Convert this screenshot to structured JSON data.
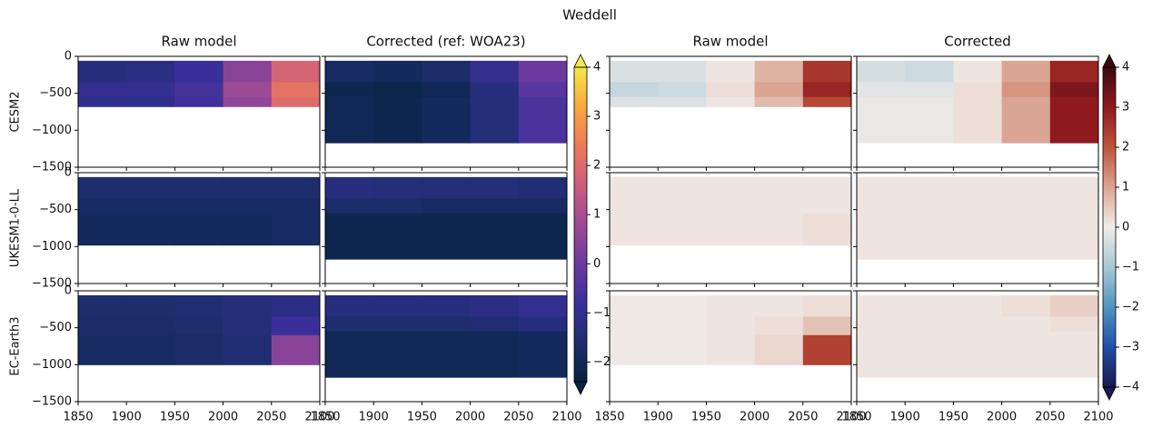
{
  "chart_data": {
    "type": "heatmap",
    "title": "Weddell",
    "columns": [
      "Raw model",
      "Corrected (ref: WOA23)",
      "Raw model",
      "Corrected"
    ],
    "xlim": [
      1850,
      2100
    ],
    "xticks": [
      1850,
      1900,
      1950,
      2000,
      2050,
      2100
    ],
    "ylim": [
      -1500,
      0
    ],
    "yticks": [
      0,
      {
        "value": -500,
        "label": "−500"
      },
      {
        "value": -1000,
        "label": "−1000"
      },
      {
        "value": -1500,
        "label": "−1500"
      }
    ],
    "x_edges": [
      1850,
      1900,
      1950,
      2000,
      2050,
      2100
    ],
    "colorbars": [
      {
        "clim": [
          -2.4,
          4.0
        ],
        "extend": "both",
        "ticks": [
          {
            "value": -2,
            "label": "−2"
          },
          {
            "value": -1,
            "label": "−1"
          },
          0,
          1,
          2,
          3,
          4
        ],
        "colors": [
          "#04233e",
          "#1e2d6e",
          "#3a2f9a",
          "#6a3a9e",
          "#9c4a94",
          "#cd5c7c",
          "#ec7b5b",
          "#f9a83e",
          "#f5e84b"
        ]
      },
      {
        "clim": [
          -4,
          4
        ],
        "extend": "both",
        "ticks": [
          {
            "value": -4,
            "label": "−4"
          },
          {
            "value": -3,
            "label": "−3"
          },
          {
            "value": -2,
            "label": "−2"
          },
          {
            "value": -1,
            "label": "−1"
          },
          0,
          1,
          2,
          3,
          4
        ],
        "colors": [
          "#1a1a4e",
          "#1f4fa8",
          "#4f95c0",
          "#a8c8d4",
          "#f1ece9",
          "#dba593",
          "#c0533b",
          "#8f1a1e",
          "#3c0911"
        ]
      }
    ],
    "rows": [
      {
        "name": "CESM2",
        "panels": [
          {
            "depth_edges": [
              -60,
              -350,
              -550,
              -680
            ],
            "values": [
              [
                -1.3,
                -1.2,
                -0.8,
                0.5,
                1.8
              ],
              [
                -1.0,
                -1.0,
                -0.6,
                0.8,
                2.2
              ],
              [
                -1.1,
                -1.1,
                -0.7,
                0.6,
                2.0
              ]
            ]
          },
          {
            "depth_edges": [
              -60,
              -350,
              -550,
              -1170
            ],
            "values": [
              [
                -1.8,
                -1.9,
                -1.7,
                -1.0,
                0.0
              ],
              [
                -2.1,
                -2.2,
                -2.0,
                -1.3,
                -0.3
              ],
              [
                -2.0,
                -2.1,
                -1.9,
                -1.4,
                -0.5
              ]
            ]
          },
          {
            "depth_edges": [
              -60,
              -350,
              -550,
              -680
            ],
            "values": [
              [
                -0.3,
                -0.3,
                0.1,
                0.8,
                2.5
              ],
              [
                -0.6,
                -0.5,
                0.2,
                1.0,
                2.8
              ],
              [
                -0.3,
                -0.3,
                0.1,
                0.7,
                2.2
              ]
            ]
          },
          {
            "depth_edges": [
              -60,
              -350,
              -550,
              -1170
            ],
            "values": [
              [
                -0.4,
                -0.5,
                0.1,
                1.0,
                2.8
              ],
              [
                -0.2,
                -0.2,
                0.2,
                1.2,
                3.2
              ],
              [
                -0.1,
                -0.1,
                0.2,
                1.0,
                3.0
              ]
            ]
          }
        ]
      },
      {
        "name": "UKESM1-0-LL",
        "panels": [
          {
            "depth_edges": [
              -60,
              -350,
              -550,
              -980
            ],
            "values": [
              [
                -1.6,
                -1.6,
                -1.6,
                -1.6,
                -1.6
              ],
              [
                -1.8,
                -1.8,
                -1.8,
                -1.8,
                -1.8
              ],
              [
                -1.9,
                -1.9,
                -1.9,
                -1.9,
                -1.8
              ]
            ]
          },
          {
            "depth_edges": [
              -60,
              -350,
              -550,
              -1170
            ],
            "values": [
              [
                -1.3,
                -1.4,
                -1.4,
                -1.4,
                -1.5
              ],
              [
                -1.7,
                -1.7,
                -1.8,
                -1.8,
                -1.8
              ],
              [
                -2.1,
                -2.1,
                -2.1,
                -2.1,
                -2.1
              ]
            ]
          },
          {
            "depth_edges": [
              -60,
              -350,
              -550,
              -980
            ],
            "values": [
              [
                0.1,
                0.1,
                0.1,
                0.1,
                0.1
              ],
              [
                0.1,
                0.1,
                0.1,
                0.1,
                0.1
              ],
              [
                0.1,
                0.1,
                0.1,
                0.1,
                0.2
              ]
            ]
          },
          {
            "depth_edges": [
              -60,
              -350,
              -550,
              -1170
            ],
            "values": [
              [
                0.1,
                0.1,
                0.1,
                0.1,
                0.1
              ],
              [
                0.1,
                0.1,
                0.1,
                0.1,
                0.1
              ],
              [
                0.1,
                0.1,
                0.1,
                0.1,
                0.1
              ]
            ]
          }
        ]
      },
      {
        "name": "EC-Earth3",
        "panels": [
          {
            "depth_edges": [
              -60,
              -350,
              -600,
              -1000
            ],
            "values": [
              [
                -1.6,
                -1.6,
                -1.5,
                -1.4,
                -1.2
              ],
              [
                -1.7,
                -1.7,
                -1.6,
                -1.4,
                -0.8
              ],
              [
                -1.8,
                -1.8,
                -1.7,
                -1.5,
                0.5
              ]
            ]
          },
          {
            "depth_edges": [
              -60,
              -350,
              -550,
              -1170
            ],
            "values": [
              [
                -1.3,
                -1.3,
                -1.3,
                -1.2,
                -1.0
              ],
              [
                -1.6,
                -1.6,
                -1.6,
                -1.5,
                -1.3
              ],
              [
                -2.0,
                -2.0,
                -2.0,
                -2.0,
                -1.9
              ]
            ]
          },
          {
            "depth_edges": [
              -60,
              -350,
              -600,
              -1000
            ],
            "values": [
              [
                0.05,
                0.05,
                0.1,
                0.1,
                0.2
              ],
              [
                0.05,
                0.05,
                0.1,
                0.2,
                0.6
              ],
              [
                0.05,
                0.05,
                0.1,
                0.3,
                2.3
              ]
            ]
          },
          {
            "depth_edges": [
              -60,
              -350,
              -550,
              -1170
            ],
            "values": [
              [
                0.1,
                0.1,
                0.1,
                0.2,
                0.4
              ],
              [
                0.1,
                0.1,
                0.1,
                0.1,
                0.2
              ],
              [
                0.1,
                0.1,
                0.1,
                0.1,
                0.1
              ]
            ]
          }
        ]
      }
    ]
  }
}
